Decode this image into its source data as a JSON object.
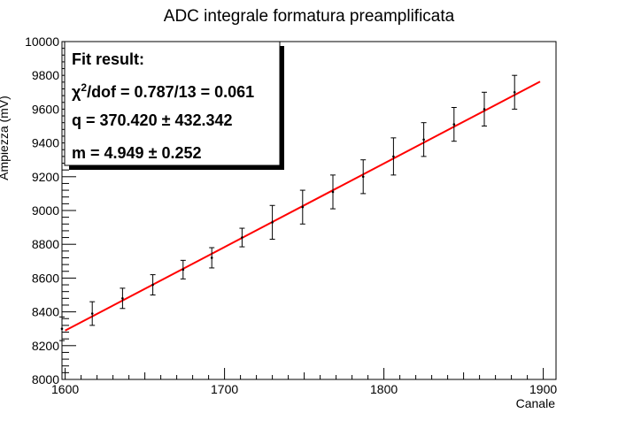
{
  "chart_data": {
    "type": "scatter",
    "title": "ADC integrale formatura preamplificata",
    "xlabel": "Canale",
    "ylabel": "Ampiezza (mV)",
    "xlim": [
      1598,
      1908
    ],
    "ylim": [
      8000,
      10000
    ],
    "x_ticks": [
      1600,
      1700,
      1800,
      1900
    ],
    "y_ticks": [
      8000,
      8200,
      8400,
      8600,
      8800,
      9000,
      9200,
      9400,
      9600,
      9800,
      10000
    ],
    "x_tick_labels": [
      "1600",
      "1700",
      "1800",
      "1900"
    ],
    "y_tick_labels": [
      "8000",
      "8200",
      "8400",
      "8600",
      "8800",
      "9000",
      "9200",
      "9400",
      "9600",
      "9800",
      "10000"
    ],
    "grid": false,
    "series": [
      {
        "type": "errorbar",
        "x": [
          1598,
          1617,
          1636,
          1655,
          1674,
          1692,
          1711,
          1730,
          1749,
          1768,
          1787,
          1806,
          1825,
          1844,
          1863,
          1882
        ],
        "y": [
          8300,
          8390,
          8480,
          8560,
          8650,
          8720,
          8840,
          8930,
          9020,
          9110,
          9200,
          9320,
          9420,
          9510,
          9600,
          9700
        ],
        "yerr": [
          70,
          70,
          60,
          60,
          55,
          60,
          55,
          100,
          100,
          100,
          100,
          110,
          100,
          100,
          100,
          100
        ],
        "color": "#000000"
      },
      {
        "type": "line",
        "x": [
          1600,
          1898
        ],
        "y": [
          8289,
          9763
        ],
        "color": "#ff0000"
      }
    ],
    "annotations": {
      "fit_title": "Fit result:",
      "chi2_prefix": "χ",
      "chi2_sup": "2",
      "chi2_suffix": "/dof = 0.787/13 = 0.061",
      "q_line": "q = 370.420 ± 432.342",
      "m_line": "m = 4.949 ± 0.252"
    }
  }
}
